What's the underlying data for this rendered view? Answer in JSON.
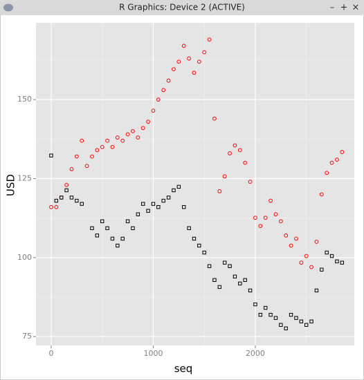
{
  "window": {
    "title": "R Graphics: Device 2 (ACTIVE)",
    "controls": [
      "–",
      "+",
      "×"
    ]
  },
  "chart_data": {
    "type": "scatter",
    "x_label": "seq",
    "y_label": "USD",
    "x": [
      0,
      50,
      100,
      150,
      200,
      250,
      300,
      350,
      400,
      450,
      500,
      550,
      600,
      650,
      700,
      750,
      800,
      850,
      900,
      950,
      1000,
      1050,
      1100,
      1150,
      1200,
      1250,
      1300,
      1350,
      1400,
      1450,
      1500,
      1550,
      1600,
      1650,
      1700,
      1750,
      1800,
      1850,
      1900,
      1950,
      2000,
      2050,
      2100,
      2150,
      2200,
      2250,
      2300,
      2350,
      2400,
      2450,
      2500,
      2550,
      2600,
      2650,
      2700,
      2750,
      2800,
      2850
    ],
    "series": [
      {
        "color": "#ff0000",
        "marker": "circle",
        "values": [
          116,
          116,
          119,
          123,
          128,
          132,
          137,
          129,
          132,
          134,
          135,
          137,
          135,
          138,
          137,
          139,
          140,
          138,
          141,
          143,
          146.5,
          150,
          153,
          156,
          159.6,
          162,
          167,
          163,
          158.5,
          162,
          165,
          169,
          144,
          121,
          125.7,
          133,
          135.5,
          134,
          130,
          124,
          112.6,
          110,
          112.6,
          118,
          113.7,
          111.5,
          107,
          103.8,
          106,
          98.4,
          100.5,
          97,
          105,
          120,
          126.8,
          130,
          131,
          133.4
        ]
      },
      {
        "color": "#000000",
        "marker": "square",
        "values": [
          132.3,
          118,
          119,
          121.3,
          119,
          118,
          117,
          null,
          109.3,
          107,
          111.5,
          109.3,
          106,
          103.8,
          106,
          111.5,
          109.3,
          113.7,
          117,
          114.8,
          117,
          116,
          118,
          119,
          121.3,
          122.4,
          116,
          109.3,
          106,
          103.8,
          101.6,
          97.3,
          92.9,
          90.7,
          98.4,
          97.3,
          94,
          91.8,
          92.9,
          89.6,
          85.2,
          81.9,
          84.1,
          81.9,
          80.9,
          78.7,
          77.6,
          81.9,
          80.9,
          79.8,
          78.7,
          79.8,
          89.6,
          96.2,
          101.6,
          100.5,
          98.8,
          98.4
        ]
      }
    ],
    "xlim": [
      -149,
      2970
    ],
    "ylim": [
      72.2,
      174.3
    ],
    "xticks": [
      0,
      1000,
      2000
    ],
    "yticks": [
      75,
      100,
      125,
      150
    ],
    "x_minor_ticks": [
      500,
      1500,
      2500
    ],
    "y_minor_ticks": [
      87.5,
      112.5,
      137.5,
      162.5
    ],
    "grid": true,
    "background": "#e5e5e5"
  }
}
